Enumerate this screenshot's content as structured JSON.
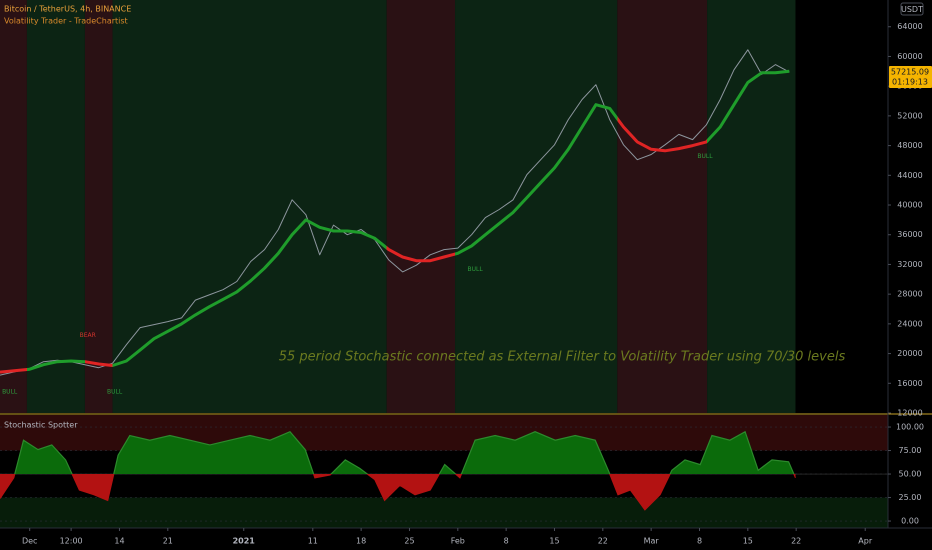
{
  "chart_data": [
    {
      "type": "line",
      "title": "Bitcoin / TetherUS, 4h, BINANCE",
      "subtitle": "Volatility Trader - TradeChartist",
      "y_unit": "USDT",
      "annotation": "55 period Stochastic connected as External Filter to Volatility Trader  using 70/30 levels",
      "price_tag": "57215.09",
      "countdown": "01:19:13",
      "x": [
        -4.3,
        0,
        2,
        4,
        6,
        8,
        10,
        12,
        14,
        16,
        18,
        20,
        22,
        24,
        26,
        28,
        30,
        32,
        34,
        36,
        38,
        40,
        42,
        44,
        46,
        48,
        50,
        52,
        54,
        56,
        58,
        60,
        62,
        64,
        66,
        68,
        70,
        72,
        74,
        76,
        78,
        80,
        82,
        84,
        86,
        88,
        90,
        92,
        94,
        96,
        98,
        100,
        102,
        104,
        106,
        108,
        110
      ],
      "series": [
        {
          "color": "#8d969e",
          "values": [
            17100,
            18000,
            18900,
            19100,
            18900,
            18500,
            18100,
            18700,
            21200,
            23500,
            23900,
            24300,
            24800,
            27200,
            27900,
            28600,
            29700,
            32400,
            34000,
            36700,
            40700,
            38700,
            33300,
            37300,
            36000,
            36700,
            35300,
            32600,
            31000,
            31900,
            33300,
            34000,
            34200,
            36000,
            38300,
            39400,
            40700,
            44100,
            46100,
            48100,
            51500,
            54200,
            56200,
            51500,
            48100,
            46100,
            46800,
            48100,
            49500,
            48800,
            50800,
            54200,
            58200,
            60900,
            57600,
            58900,
            57900
          ]
        },
        {
          "color": "#1f9d2b",
          "values": [
            17500,
            17900,
            18500,
            18900,
            19000,
            18900,
            18600,
            18400,
            19000,
            20500,
            22000,
            23000,
            24000,
            25200,
            26300,
            27300,
            28300,
            29800,
            31500,
            33500,
            36000,
            38000,
            37000,
            36500,
            36500,
            36300,
            35500,
            34000,
            33000,
            32500,
            32500,
            33000,
            33500,
            34500,
            36000,
            37500,
            39000,
            41000,
            43000,
            45000,
            47500,
            50500,
            53500,
            53000,
            50500,
            48500,
            47500,
            47300,
            47600,
            48000,
            48500,
            50500,
            53500,
            56500,
            57800,
            57800,
            58000
          ]
        }
      ],
      "bands": [
        {
          "x": [
            -4.3,
            -0.4
          ],
          "color": "#2a1114",
          "line_color": "#e02424"
        },
        {
          "x": [
            -0.4,
            8
          ],
          "color": "#0c2414",
          "line_color": "#1f9d2b"
        },
        {
          "x": [
            8,
            12
          ],
          "color": "#2a1114",
          "line_color": "#e02424"
        },
        {
          "x": [
            12,
            51.7
          ],
          "color": "#0c2414",
          "line_color": "#1f9d2b"
        },
        {
          "x": [
            51.7,
            61.6
          ],
          "color": "#2a1114",
          "line_color": "#e02424"
        },
        {
          "x": [
            61.6,
            85.1
          ],
          "color": "#0c2414",
          "line_color": "#1f9d2b"
        },
        {
          "x": [
            85.1,
            98.1
          ],
          "color": "#2a1114",
          "line_color": "#e02424"
        },
        {
          "x": [
            98.1,
            110.9
          ],
          "color": "#0c2414",
          "line_color": "#1f9d2b"
        }
      ],
      "markers": [
        {
          "text": "BULL",
          "x": -2.9,
          "y": 14800,
          "color": "#2e9c3c"
        },
        {
          "text": "BEAR",
          "x": 8.4,
          "y": 22400,
          "color": "#d0342c"
        },
        {
          "text": "BULL",
          "x": 12.3,
          "y": 14800,
          "color": "#2e9c3c"
        },
        {
          "text": "BULL",
          "x": 64.5,
          "y": 31300,
          "color": "#2e9c3c"
        },
        {
          "text": "BULL",
          "x": 97.8,
          "y": 46500,
          "color": "#2e9c3c"
        }
      ],
      "xlim": [
        -4.3,
        124.3
      ],
      "ylim": [
        12000,
        67600
      ],
      "yticks": [
        64000,
        60000,
        56000,
        52000,
        48000,
        44000,
        40000,
        36000,
        32000,
        28000,
        24000,
        20000,
        16000,
        12000
      ]
    },
    {
      "type": "area",
      "title": "Stochastic Spotter",
      "x": [
        -4.3,
        -2.3,
        -0.9,
        1.2,
        3.2,
        5.2,
        7.2,
        9.3,
        11.3,
        12.8,
        14.5,
        17.4,
        20.3,
        23.2,
        26.1,
        29,
        31.9,
        34.8,
        37.7,
        39.9,
        41.3,
        43.5,
        45.7,
        47.8,
        50,
        51.4,
        53.6,
        55.8,
        58,
        60.1,
        62.3,
        64.5,
        67.4,
        70.3,
        73.2,
        76.1,
        79,
        81.9,
        83.8,
        85.2,
        87,
        89.1,
        91.3,
        93,
        94.9,
        97.1,
        98.8,
        101.4,
        103.6,
        105.5,
        107.5,
        109.9,
        110.9
      ],
      "values": [
        24,
        46,
        86,
        76,
        81,
        65,
        33,
        28,
        22,
        70,
        91,
        86,
        91,
        86,
        81,
        86,
        91,
        86,
        95,
        76,
        46,
        49,
        65,
        56,
        44,
        22,
        38,
        28,
        33,
        60,
        46,
        86,
        91,
        86,
        95,
        86,
        91,
        86,
        54,
        28,
        33,
        12,
        28,
        54,
        65,
        60,
        91,
        86,
        95,
        54,
        65,
        63,
        46
      ],
      "baseline": 50,
      "up_color": "#0b6b0b",
      "down_color": "#b31212",
      "line_color": "#2c8a2c",
      "xlim": [
        -4.3,
        124.3
      ],
      "ylim": [
        -7.4,
        112.8
      ],
      "yticks": [
        {
          "value": 100,
          "label": "100.00"
        },
        {
          "value": 75,
          "label": "75.00"
        },
        {
          "value": 50,
          "label": "50.00"
        },
        {
          "value": 25,
          "label": "25.00"
        },
        {
          "value": 0,
          "label": "0.00"
        }
      ],
      "xticks": [
        {
          "value": 0,
          "label": "Dec"
        },
        {
          "value": 6,
          "label": "12:00"
        },
        {
          "value": 13,
          "label": "14"
        },
        {
          "value": 20,
          "label": "21"
        },
        {
          "value": 31,
          "label": "2021"
        },
        {
          "value": 41,
          "label": "11"
        },
        {
          "value": 48,
          "label": "18"
        },
        {
          "value": 55,
          "label": "25"
        },
        {
          "value": 62,
          "label": "Feb"
        },
        {
          "value": 69,
          "label": "8"
        },
        {
          "value": 76,
          "label": "15"
        },
        {
          "value": 83,
          "label": "22"
        },
        {
          "value": 90,
          "label": "Mar"
        },
        {
          "value": 97,
          "label": "8"
        },
        {
          "value": 104,
          "label": "15"
        },
        {
          "value": 111,
          "label": "22"
        },
        {
          "value": 121,
          "label": "Apr"
        }
      ]
    }
  ]
}
